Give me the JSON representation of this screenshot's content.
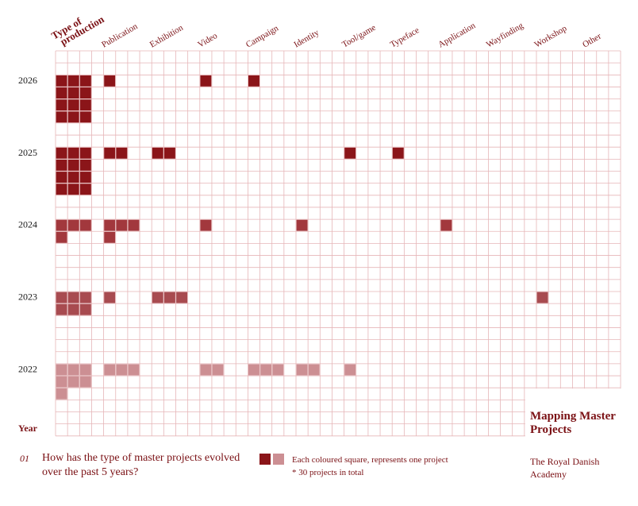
{
  "chart_data": {
    "type": "heatmap",
    "header_label": "Type of production",
    "axis_label": "Year",
    "categories": [
      "Publication",
      "Exhibition",
      "Video",
      "Campaign",
      "Identity",
      "Tool/game",
      "Typeface",
      "Application",
      "Wayfinding",
      "Workshop",
      "Other"
    ],
    "years": [
      "2026",
      "2025",
      "2024",
      "2023",
      "2022"
    ],
    "year_colors": {
      "2026": "#8b1519",
      "2025": "#8b1519",
      "2024": "#a2383d",
      "2023": "#a84b50",
      "2022": "#cc8f93"
    },
    "grid_color": "#e6b6b8",
    "values": {
      "2026": {
        "Publication": 12,
        "Exhibition": 1,
        "Video": 0,
        "Campaign": 1,
        "Identity": 1,
        "Tool/game": 0,
        "Typeface": 0,
        "Application": 0,
        "Wayfinding": 0,
        "Workshop": 0,
        "Other": 0
      },
      "2025": {
        "Publication": 12,
        "Exhibition": 2,
        "Video": 2,
        "Campaign": 0,
        "Identity": 0,
        "Tool/game": 0,
        "Typeface": 1,
        "Application": 1,
        "Wayfinding": 0,
        "Workshop": 0,
        "Other": 0
      },
      "2024": {
        "Publication": 4,
        "Exhibition": 4,
        "Video": 0,
        "Campaign": 1,
        "Identity": 0,
        "Tool/game": 1,
        "Typeface": 0,
        "Application": 0,
        "Wayfinding": 1,
        "Workshop": 0,
        "Other": 0
      },
      "2023": {
        "Publication": 6,
        "Exhibition": 1,
        "Video": 3,
        "Campaign": 0,
        "Identity": 0,
        "Tool/game": 0,
        "Typeface": 0,
        "Application": 0,
        "Wayfinding": 0,
        "Workshop": 0,
        "Other": 1
      },
      "2022": {
        "Publication": 7,
        "Exhibition": 3,
        "Video": 0,
        "Campaign": 2,
        "Identity": 3,
        "Tool/game": 2,
        "Typeface": 1,
        "Application": 0,
        "Wayfinding": 0,
        "Workshop": 0,
        "Other": 0
      }
    },
    "grid_on": true
  },
  "title": "Mapping Master Projects",
  "organisation": "The Royal Danish Academy",
  "question_number": "01",
  "question": "How has the type of master projects evolved over the past 5 years?",
  "legend": {
    "line1": "Each coloured square, represents one project",
    "line2": "* 30 projects in total",
    "swatch_dark": "#8b1519",
    "swatch_light": "#cc8f93"
  }
}
